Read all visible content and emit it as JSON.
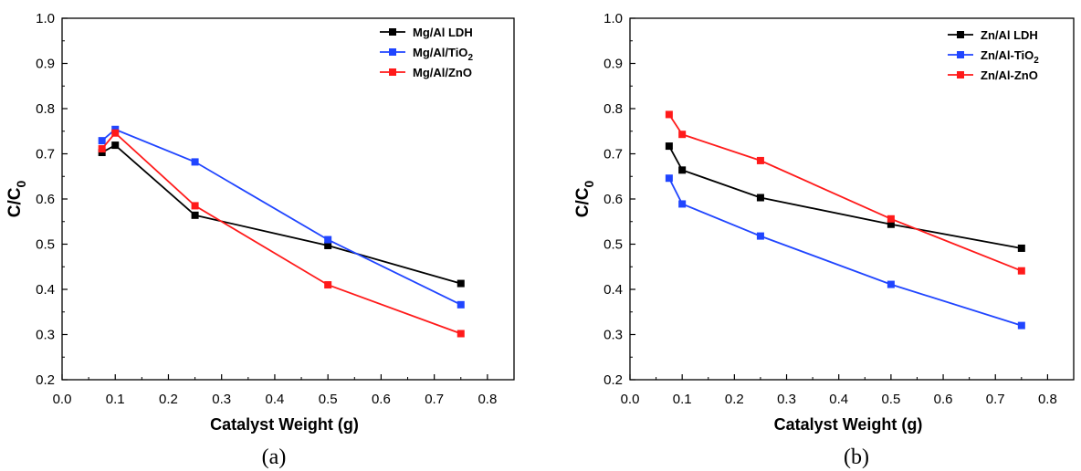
{
  "chart_data": [
    {
      "type": "line",
      "caption": "(a)",
      "xlabel": "Catalyst Weight (g)",
      "ylabel": {
        "main": "C/C",
        "sub": "0"
      },
      "xlim": [
        0.0,
        0.85
      ],
      "ylim": [
        0.2,
        1.0
      ],
      "xticks": [
        "0.0",
        "0.1",
        "0.2",
        "0.3",
        "0.4",
        "0.5",
        "0.6",
        "0.7",
        "0.8"
      ],
      "yticks": [
        "0.2",
        "0.3",
        "0.4",
        "0.5",
        "0.6",
        "0.7",
        "0.8",
        "0.9",
        "1.0"
      ],
      "grid": false,
      "legend_position": "top-right",
      "x": [
        0.075,
        0.1,
        0.25,
        0.5,
        0.75
      ],
      "series": [
        {
          "name": "Mg/Al LDH",
          "name_main": "Mg/Al LDH",
          "name_sub": "",
          "name_tail": "",
          "color": "#000000",
          "values": [
            0.703,
            0.719,
            0.564,
            0.497,
            0.413
          ]
        },
        {
          "name": "Mg/Al/TiO2",
          "name_main": "Mg/Al/TiO",
          "name_sub": "2",
          "name_tail": "",
          "color": "#2045ff",
          "values": [
            0.729,
            0.754,
            0.682,
            0.51,
            0.366
          ]
        },
        {
          "name": "Mg/Al/ZnO",
          "name_main": "Mg/Al/ZnO",
          "name_sub": "",
          "name_tail": "",
          "color": "#ff1a1a",
          "values": [
            0.711,
            0.746,
            0.585,
            0.41,
            0.302
          ]
        }
      ]
    },
    {
      "type": "line",
      "caption": "(b)",
      "xlabel": "Catalyst Weight (g)",
      "ylabel": {
        "main": "C/C",
        "sub": "0"
      },
      "xlim": [
        0.0,
        0.85
      ],
      "ylim": [
        0.2,
        1.0
      ],
      "xticks": [
        "0.0",
        "0.1",
        "0.2",
        "0.3",
        "0.4",
        "0.5",
        "0.6",
        "0.7",
        "0.8"
      ],
      "yticks": [
        "0.2",
        "0.3",
        "0.4",
        "0.5",
        "0.6",
        "0.7",
        "0.8",
        "0.9",
        "1.0"
      ],
      "grid": false,
      "legend_position": "top-right",
      "x": [
        0.075,
        0.1,
        0.25,
        0.5,
        0.75
      ],
      "series": [
        {
          "name": "Zn/Al LDH",
          "name_main": "Zn/Al LDH",
          "name_sub": "",
          "name_tail": "",
          "color": "#000000",
          "values": [
            0.717,
            0.664,
            0.603,
            0.544,
            0.491
          ]
        },
        {
          "name": "Zn/Al-TiO2",
          "name_main": "Zn/Al-TiO",
          "name_sub": "2",
          "name_tail": "",
          "color": "#2045ff",
          "values": [
            0.646,
            0.589,
            0.518,
            0.411,
            0.32
          ]
        },
        {
          "name": "Zn/Al-ZnO",
          "name_main": "Zn/Al-ZnO",
          "name_sub": "",
          "name_tail": "",
          "color": "#ff1a1a",
          "values": [
            0.787,
            0.743,
            0.685,
            0.556,
            0.441
          ]
        }
      ]
    }
  ]
}
